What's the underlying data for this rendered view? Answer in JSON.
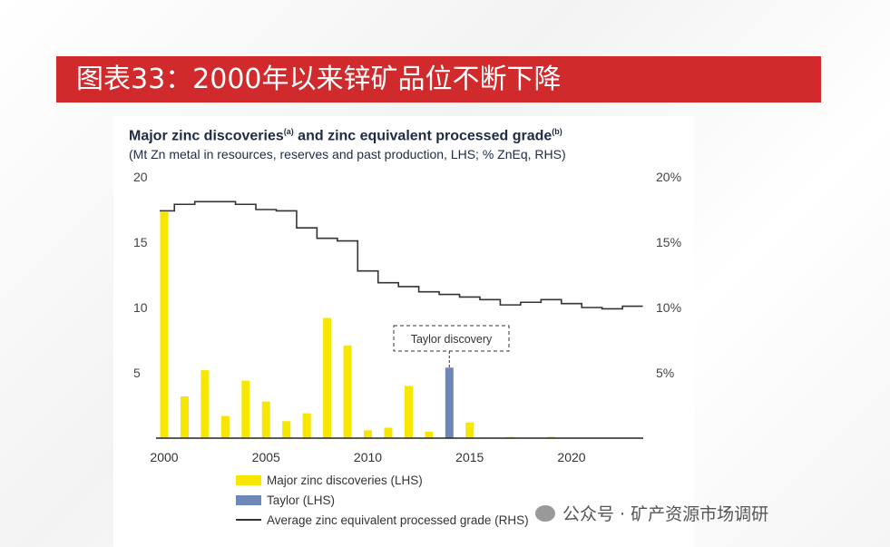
{
  "banner": {
    "title": "图表33：2000年以来锌矿品位不断下降"
  },
  "watermark": "公众号 · 矿产资源市场调研",
  "chart_data": {
    "type": "bar",
    "title": "Major zinc discoveries",
    "title_sup_a": "(a)",
    "title_mid": " and zinc equivalent processed grade",
    "title_sup_b": "(b)",
    "subtitle": "(Mt Zn metal in resources, reserves and past production, LHS; % ZnEq, RHS)",
    "x": [
      2000,
      2001,
      2002,
      2003,
      2004,
      2005,
      2006,
      2007,
      2008,
      2009,
      2010,
      2011,
      2012,
      2013,
      2014,
      2015,
      2016,
      2017,
      2018,
      2019,
      2020,
      2021,
      2022,
      2023
    ],
    "x_ticks": [
      "2000",
      "2005",
      "2010",
      "2015",
      "2020"
    ],
    "ylim": [
      0,
      20
    ],
    "y_ticks": [
      "20",
      "15",
      "10",
      "5"
    ],
    "y2lim": [
      0,
      20
    ],
    "y2_ticks": [
      "20%",
      "15%",
      "10%",
      "5%"
    ],
    "series": [
      {
        "name": "Major zinc discoveries (LHS)",
        "type": "bar",
        "color": "#f7e600",
        "values": [
          17.3,
          3.2,
          5.2,
          1.7,
          4.4,
          2.8,
          1.3,
          1.9,
          9.2,
          7.1,
          0.6,
          0.8,
          4.0,
          0.5,
          0,
          1.2,
          0,
          0.1,
          0,
          0.1,
          0,
          0,
          0,
          0
        ]
      },
      {
        "name": "Taylor (LHS)",
        "type": "bar",
        "color": "#6d87b8",
        "values": [
          0,
          0,
          0,
          0,
          0,
          0,
          0,
          0,
          0,
          0,
          0,
          0,
          0,
          0,
          5.4,
          0,
          0,
          0,
          0,
          0,
          0,
          0,
          0,
          0
        ]
      },
      {
        "name": "Average zinc equivalent processed grade (RHS)",
        "type": "step",
        "color": "#333333",
        "values": [
          17.4,
          17.9,
          18.1,
          18.1,
          17.9,
          17.5,
          17.4,
          16.1,
          15.3,
          15.1,
          12.8,
          11.9,
          11.6,
          11.2,
          11.0,
          10.8,
          10.6,
          10.2,
          10.4,
          10.6,
          10.3,
          10.0,
          9.9,
          10.1
        ]
      }
    ],
    "annotation": "Taylor discovery"
  }
}
